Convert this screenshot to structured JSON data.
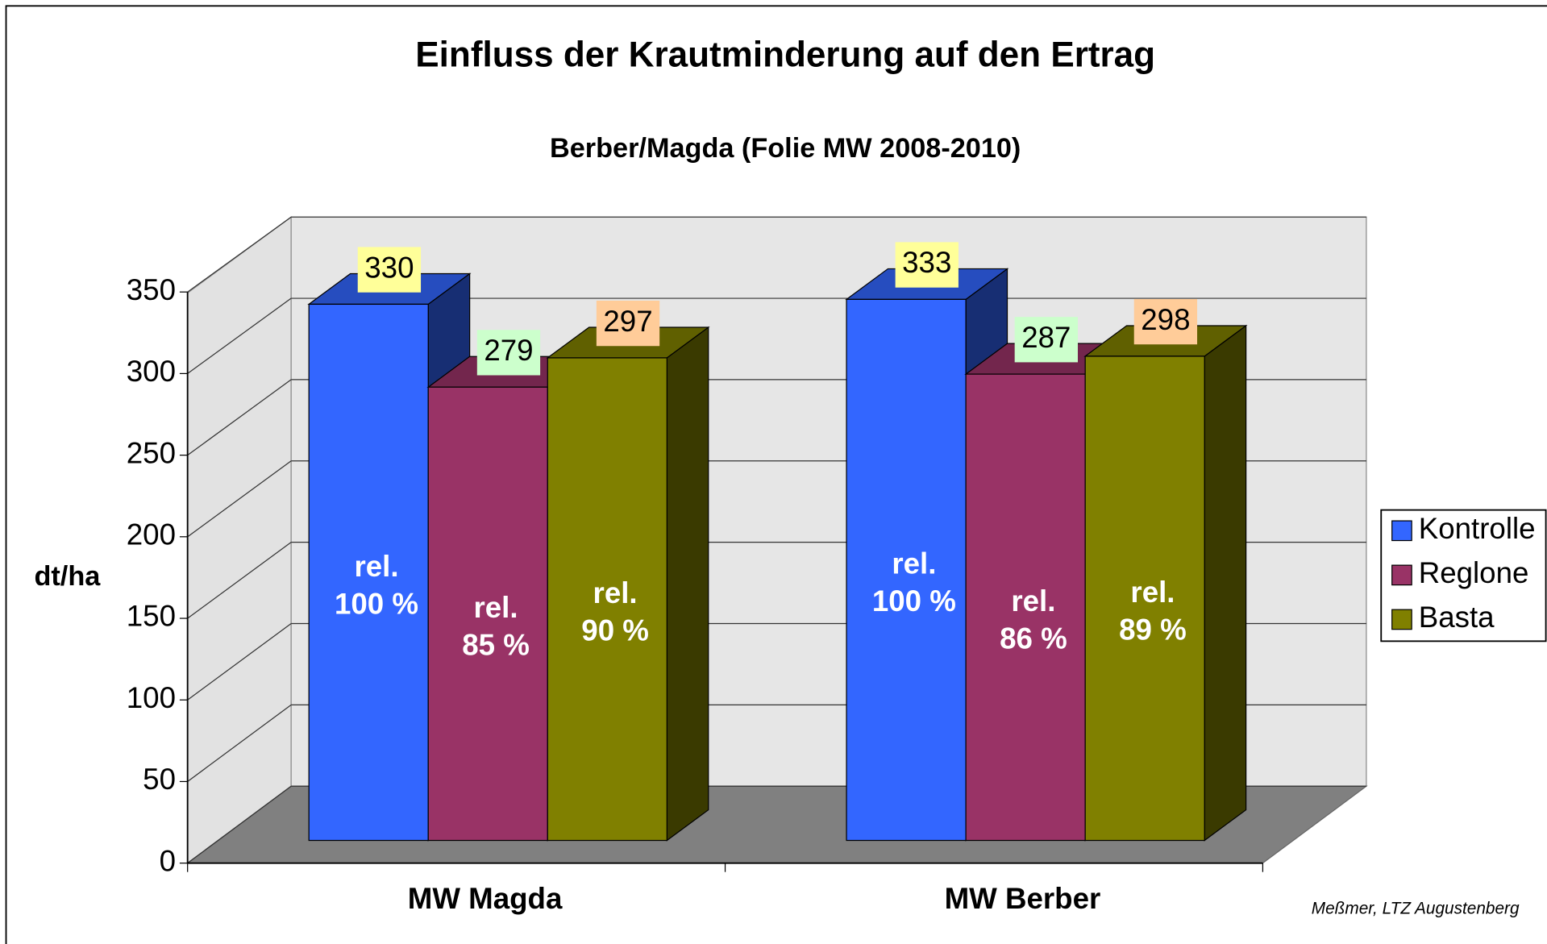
{
  "chart_data": {
    "type": "bar3d",
    "title": "Einfluss der Krautminderung auf den Ertrag",
    "subtitle": "Berber/Magda (Folie MW 2008-2010)",
    "ylabel": "dt/ha",
    "categories": [
      "MW Magda",
      "MW Berber"
    ],
    "series": [
      {
        "name": "Kontrolle",
        "color": "#3366ff",
        "label_color": "#ffff99",
        "values": [
          330,
          333
        ],
        "annotations": [
          [
            "rel.",
            "100 %"
          ],
          [
            "rel.",
            "100 %"
          ]
        ]
      },
      {
        "name": "Reglone",
        "color": "#993366",
        "label_color": "#ccffcc",
        "values": [
          279,
          287
        ],
        "annotations": [
          [
            "rel.",
            "85 %"
          ],
          [
            "rel.",
            "86 %"
          ]
        ]
      },
      {
        "name": "Basta",
        "color": "#808000",
        "label_color": "#ffcc99",
        "values": [
          297,
          298
        ],
        "annotations": [
          [
            "rel.",
            "90 %"
          ],
          [
            "rel.",
            "89 %"
          ]
        ]
      }
    ],
    "ylim": [
      0,
      350
    ],
    "yticks": [
      0,
      50,
      100,
      150,
      200,
      250,
      300,
      350
    ],
    "grid": true,
    "legend": "right",
    "note": "Meßmer, LTZ Augustenberg"
  }
}
